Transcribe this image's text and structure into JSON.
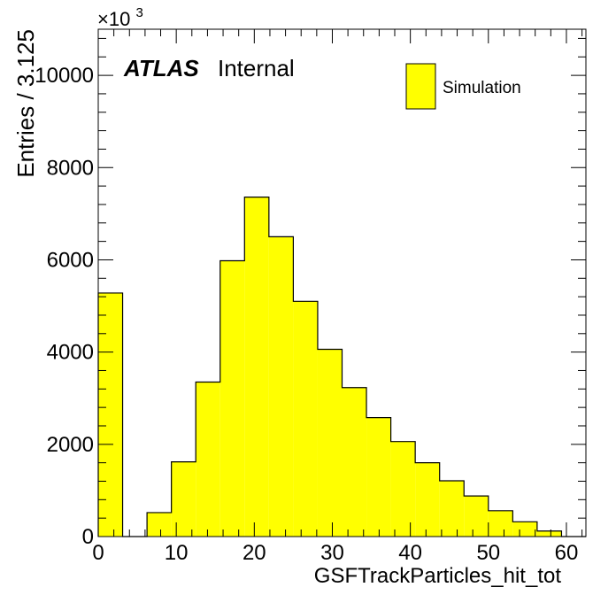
{
  "chart_data": {
    "type": "bar",
    "style": "histogram",
    "xlabel": "GSFTrackParticles_hit_tot",
    "ylabel": "Entries / 3.125",
    "y_multiplier": "×10",
    "y_multiplier_exp": "3",
    "xlim": [
      0,
      62.5
    ],
    "ylim": [
      0,
      11000
    ],
    "bin_width": 3.125,
    "x_ticks": [
      0,
      10,
      20,
      30,
      40,
      50,
      60
    ],
    "x_tick_labels": [
      "0",
      "10",
      "20",
      "30",
      "40",
      "50",
      "60"
    ],
    "y_ticks": [
      0,
      2000,
      4000,
      6000,
      8000,
      10000
    ],
    "y_tick_labels": [
      "0",
      "2000",
      "4000",
      "6000",
      "8000",
      "10000"
    ],
    "bin_edges": [
      0,
      3.125,
      6.25,
      9.375,
      12.5,
      15.625,
      18.75,
      21.875,
      25,
      28.125,
      31.25,
      34.375,
      37.5,
      40.625,
      43.75,
      46.875,
      50,
      53.125,
      56.25,
      59.375,
      62.5
    ],
    "series": [
      {
        "name": "Simulation",
        "values": [
          5280,
          0,
          520,
          1620,
          3350,
          5980,
          7360,
          6500,
          5100,
          4060,
          3230,
          2580,
          2060,
          1600,
          1210,
          880,
          560,
          320,
          120,
          0
        ]
      }
    ],
    "fill_color": "#ffff00",
    "line_color": "#000000",
    "grid": false,
    "legend_position": "top-right",
    "annotation_bold": "ATLAS",
    "annotation_normal": "Internal"
  }
}
